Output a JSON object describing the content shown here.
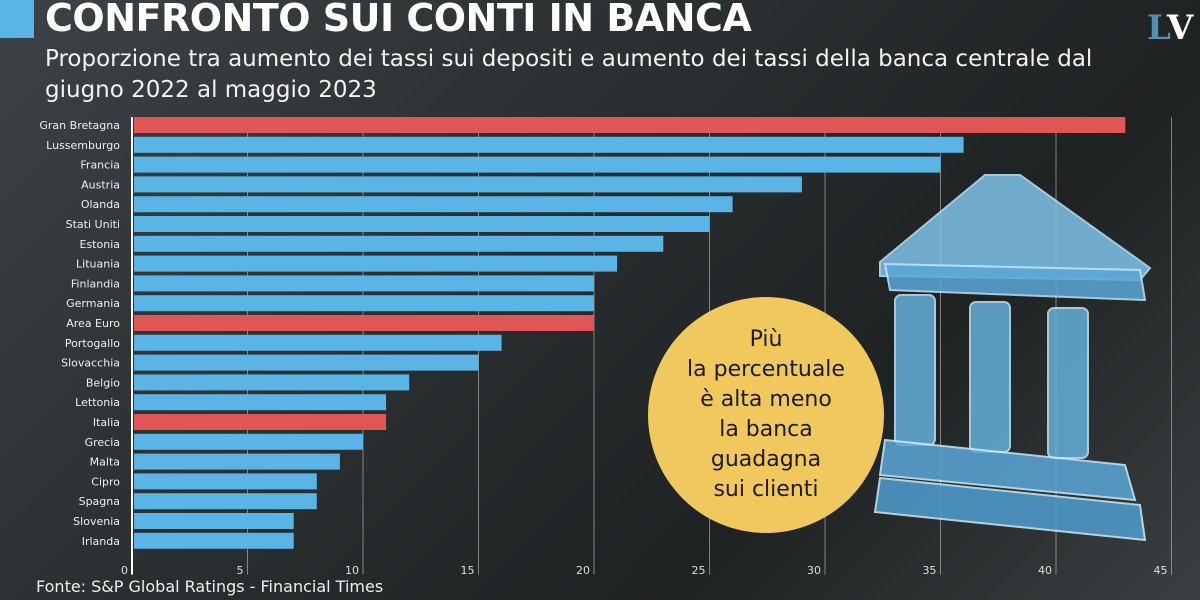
{
  "header": {
    "title": "CONFRONTO SUI CONTI IN BANCA",
    "subtitle": "Proporzione tra aumento dei tassi sui depositi e aumento dei tassi della banca centrale dal giugno 2022 al maggio 2023",
    "logo": "LV"
  },
  "callout": "Più\nla percentuale\nè alta meno\nla banca\nguadagna\nsui clienti",
  "source": "Fonte: S&P Global Ratings - Financial Times",
  "colors": {
    "default": "#5ab4e5",
    "highlight": "#e05555",
    "callout": "#f1c85e"
  },
  "chart_data": {
    "type": "bar",
    "orientation": "horizontal",
    "categories": [
      "Gran Bretagna",
      "Lussemburgo",
      "Francia",
      "Austria",
      "Olanda",
      "Stati Uniti",
      "Estonia",
      "Lituania",
      "Finlandia",
      "Germania",
      "Area Euro",
      "Portogallo",
      "Slovacchia",
      "Belgio",
      "Lettonia",
      "Italia",
      "Grecia",
      "Malta",
      "Cipro",
      "Spagna",
      "Slovenia",
      "Irlanda"
    ],
    "values": [
      43,
      36,
      35,
      29,
      26,
      25,
      23,
      21,
      20,
      20,
      20,
      16,
      15,
      12,
      11,
      11,
      10,
      9,
      8,
      8,
      7,
      7
    ],
    "highlighted": [
      "Gran Bretagna",
      "Area Euro",
      "Italia"
    ],
    "xlim": [
      0,
      45
    ],
    "xticks": [
      0,
      5,
      10,
      15,
      20,
      25,
      30,
      35,
      40,
      45
    ],
    "grid": true
  }
}
